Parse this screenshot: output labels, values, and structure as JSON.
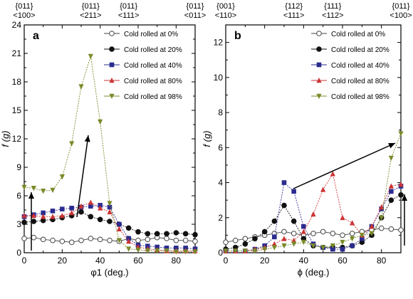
{
  "chart_data": [
    {
      "type": "line",
      "panel_label": "a",
      "xlabel": "φ1 (deg.)",
      "ylabel": "f (g)",
      "xlim": [
        0,
        90
      ],
      "ylim": [
        0,
        24
      ],
      "x_ticks": [
        0,
        20,
        40,
        60,
        80
      ],
      "y_ticks": [
        0,
        3,
        6,
        9,
        12,
        15,
        18,
        21,
        24
      ],
      "top_annotations": [
        {
          "x": 0,
          "line1": "{011}",
          "line2": "<100>"
        },
        {
          "x": 35,
          "line1": "{011}",
          "line2": "<211>"
        },
        {
          "x": 55,
          "line1": "{011}",
          "line2": "<111>"
        },
        {
          "x": 90,
          "line1": "{011}",
          "line2": "<011>"
        }
      ],
      "legend_position": "top-right",
      "x": [
        0,
        5,
        10,
        15,
        20,
        25,
        30,
        35,
        40,
        45,
        50,
        55,
        60,
        65,
        70,
        75,
        80,
        85,
        90
      ],
      "series": [
        {
          "name": "Cold rolled at 0%",
          "color": "#444444",
          "marker": "circle-open",
          "values": [
            1.5,
            1.6,
            1.4,
            1.3,
            1.2,
            1.1,
            1.3,
            1.5,
            1.4,
            1.3,
            1.2,
            1.5,
            1.3,
            1.4,
            1.6,
            1.5,
            1.3,
            1.3,
            1.2
          ]
        },
        {
          "name": "Cold rolled at 20%",
          "color": "#111111",
          "marker": "circle",
          "values": [
            3.2,
            3.3,
            3.4,
            3.5,
            3.7,
            3.9,
            4.3,
            3.8,
            3.5,
            3.3,
            3.0,
            2.6,
            2.2,
            2.0,
            2.0,
            2.0,
            2.1,
            2.0,
            1.9
          ]
        },
        {
          "name": "Cold rolled at 40%",
          "color": "#2b2b8f",
          "marker": "square",
          "values": [
            3.8,
            4.0,
            4.2,
            4.4,
            4.6,
            4.7,
            4.8,
            4.9,
            5.0,
            4.8,
            3.0,
            1.5,
            0.8,
            0.7,
            0.6,
            0.5,
            0.5,
            0.5,
            0.4
          ]
        },
        {
          "name": "Cold rolled at 80%",
          "color": "#cc3333",
          "marker": "triangle-up",
          "values": [
            3.9,
            3.9,
            3.8,
            3.8,
            3.9,
            4.2,
            4.9,
            5.3,
            4.7,
            4.3,
            2.5,
            1.2,
            0.6,
            0.4,
            0.3,
            0.2,
            0.2,
            0.2,
            0.2
          ]
        },
        {
          "name": "Cold rolled at 98%",
          "color": "#7a8a2a",
          "marker": "triangle-down",
          "values": [
            6.9,
            6.8,
            6.5,
            6.6,
            8.0,
            11.5,
            17.5,
            20.7,
            13.8,
            5.2,
            1.3,
            0.4,
            0.3,
            0.2,
            0.2,
            0.2,
            0.1,
            0.1,
            0.1
          ]
        }
      ]
    },
    {
      "type": "line",
      "panel_label": "b",
      "xlabel": "ϕ (deg.)",
      "ylabel": "f (g)",
      "xlim": [
        0,
        90
      ],
      "ylim": [
        0,
        13
      ],
      "x_ticks": [
        0,
        20,
        40,
        60,
        80
      ],
      "y_ticks": [
        0,
        2,
        4,
        6,
        8,
        10,
        12
      ],
      "top_annotations": [
        {
          "x": 0,
          "line1": "{001}",
          "line2": "<110>"
        },
        {
          "x": 35,
          "line1": "{112}",
          "line2": "<111>"
        },
        {
          "x": 55,
          "line1": "{111}",
          "line2": "<112>"
        },
        {
          "x": 90,
          "line1": "{011}",
          "line2": "<100>"
        }
      ],
      "legend_position": "top-right",
      "x": [
        0,
        5,
        10,
        15,
        20,
        25,
        30,
        35,
        40,
        45,
        50,
        55,
        60,
        65,
        70,
        75,
        80,
        85,
        90
      ],
      "series": [
        {
          "name": "Cold rolled at 0%",
          "color": "#444444",
          "marker": "circle-open",
          "values": [
            0.6,
            0.7,
            0.8,
            0.9,
            1.0,
            1.1,
            1.2,
            1.1,
            1.0,
            1.1,
            1.2,
            1.1,
            1.0,
            1.1,
            1.2,
            1.3,
            1.4,
            1.35,
            1.3
          ]
        },
        {
          "name": "Cold rolled at 20%",
          "color": "#111111",
          "marker": "circle",
          "values": [
            0.2,
            0.3,
            0.5,
            0.8,
            1.2,
            1.8,
            2.7,
            1.8,
            0.8,
            0.4,
            0.3,
            0.3,
            0.3,
            0.4,
            0.6,
            1.0,
            2.0,
            3.0,
            3.3
          ]
        },
        {
          "name": "Cold rolled at 40%",
          "color": "#2b2b8f",
          "marker": "square",
          "values": [
            0.1,
            0.1,
            0.1,
            0.2,
            0.4,
            0.9,
            4.0,
            3.5,
            1.5,
            0.5,
            0.3,
            0.2,
            0.2,
            0.4,
            0.8,
            1.5,
            2.5,
            3.5,
            3.8
          ]
        },
        {
          "name": "Cold rolled at 80%",
          "color": "#cc3333",
          "marker": "triangle-up",
          "values": [
            0.1,
            0.1,
            0.1,
            0.2,
            0.3,
            0.5,
            0.8,
            0.7,
            1.2,
            2.2,
            3.6,
            4.5,
            2.0,
            1.7,
            1.0,
            1.5,
            2.6,
            3.8,
            3.9
          ]
        },
        {
          "name": "Cold rolled at 98%",
          "color": "#7a8a2a",
          "marker": "triangle-down",
          "values": [
            0.1,
            0.1,
            0.1,
            0.1,
            0.2,
            0.3,
            0.4,
            0.5,
            0.6,
            0.4,
            0.3,
            0.4,
            0.6,
            0.8,
            1.0,
            1.1,
            2.0,
            5.4,
            6.8
          ]
        }
      ]
    }
  ]
}
